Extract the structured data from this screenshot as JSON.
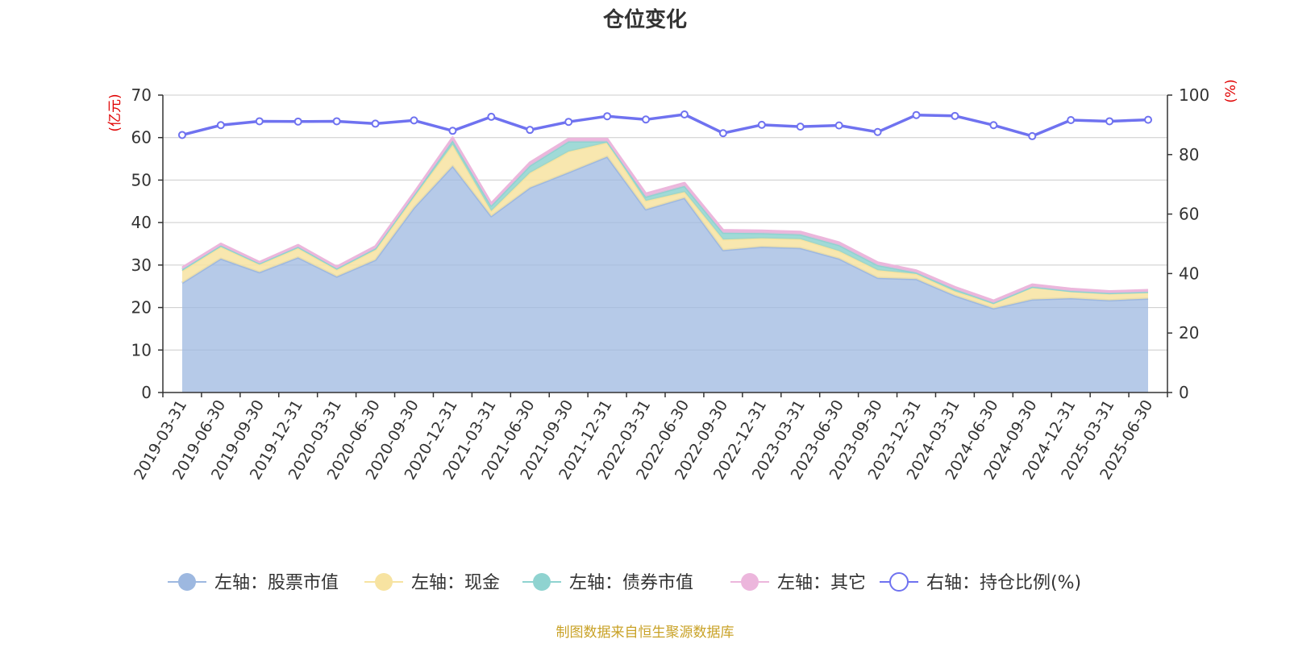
{
  "chart_data": {
    "type": "area",
    "title": "仓位变化",
    "source": "制图数据来自恒生聚源数据库",
    "left_unit": "(亿元)",
    "right_unit": "(%)",
    "ylim_left": [
      0,
      70
    ],
    "yticks_left": [
      0,
      10,
      20,
      30,
      40,
      50,
      60,
      70
    ],
    "ylim_right": [
      0,
      100
    ],
    "yticks_right": [
      0,
      20,
      40,
      60,
      80,
      100
    ],
    "grid": true,
    "legend_position": "bottom",
    "categories": [
      "2019-03-31",
      "2019-06-30",
      "2019-09-30",
      "2019-12-31",
      "2020-03-31",
      "2020-06-30",
      "2020-09-30",
      "2020-12-31",
      "2021-03-31",
      "2021-06-30",
      "2021-09-30",
      "2021-12-31",
      "2022-03-31",
      "2022-06-30",
      "2022-09-30",
      "2022-12-31",
      "2023-03-31",
      "2023-06-30",
      "2023-09-30",
      "2023-12-31",
      "2024-03-31",
      "2024-06-30",
      "2024-09-30",
      "2024-12-31",
      "2025-03-31",
      "2025-06-30"
    ],
    "series": [
      {
        "name": "左轴：股票市值",
        "axis": "left",
        "type": "area",
        "color": "#9db8e0",
        "values": [
          25.8,
          31.5,
          28.3,
          31.8,
          27.3,
          31.2,
          43.5,
          53.3,
          41.5,
          48.2,
          51.8,
          55.5,
          43.1,
          45.8,
          33.5,
          34.3,
          34.0,
          31.5,
          27.0,
          26.7,
          22.8,
          19.8,
          21.9,
          22.2,
          21.7,
          22.1
        ]
      },
      {
        "name": "左轴：现金",
        "axis": "left",
        "type": "area",
        "color": "#f7e3a1",
        "values": [
          2.8,
          2.8,
          1.8,
          2.2,
          1.6,
          2.4,
          2.5,
          5.0,
          1.2,
          3.5,
          4.9,
          3.3,
          2.0,
          1.4,
          2.5,
          2.0,
          2.1,
          1.8,
          1.8,
          1.2,
          1.0,
          1.2,
          2.9,
          1.6,
          1.6,
          1.5
        ]
      },
      {
        "name": "左轴：债券市值",
        "axis": "left",
        "type": "area",
        "color": "#8fd3d0",
        "values": [
          0.4,
          0.3,
          0.3,
          0.3,
          0.3,
          0.3,
          0.5,
          1.0,
          1.3,
          1.7,
          2.4,
          0.3,
          1.0,
          1.4,
          1.6,
          1.2,
          1.1,
          1.4,
          1.2,
          0.3,
          0.5,
          0.1,
          0.1,
          0.1,
          0.1,
          0.1
        ]
      },
      {
        "name": "左轴：其它",
        "axis": "left",
        "type": "area",
        "color": "#ecb6dc",
        "values": [
          0.4,
          0.4,
          0.3,
          0.4,
          0.4,
          0.5,
          0.5,
          0.7,
          0.5,
          0.7,
          0.6,
          0.6,
          0.7,
          0.7,
          0.6,
          0.6,
          0.6,
          0.6,
          0.6,
          0.5,
          0.5,
          0.5,
          0.5,
          0.5,
          0.4,
          0.4
        ]
      },
      {
        "name": "右轴：持仓比例(%)",
        "axis": "right",
        "type": "line",
        "color": "#6f72f0",
        "values": [
          86.6,
          89.9,
          91.2,
          91.1,
          91.2,
          90.4,
          91.5,
          88.0,
          92.7,
          88.3,
          91.0,
          92.9,
          91.8,
          93.5,
          87.2,
          90.0,
          89.4,
          89.8,
          87.6,
          93.3,
          93.0,
          89.9,
          86.2,
          91.6,
          91.2,
          91.7
        ]
      }
    ]
  }
}
